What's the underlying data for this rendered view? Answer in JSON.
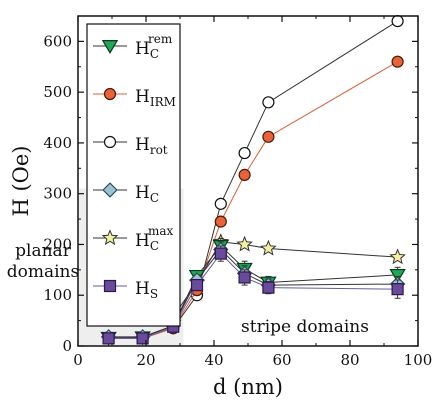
{
  "chart_data": {
    "type": "line",
    "xlabel": "d (nm)",
    "ylabel": "H (Oe)",
    "xlim": [
      0,
      100
    ],
    "ylim": [
      0,
      650
    ],
    "xticks": [
      0,
      20,
      40,
      60,
      80,
      100
    ],
    "yticks": [
      0,
      100,
      200,
      300,
      400,
      500,
      600
    ],
    "grid": false,
    "legend_position": "top-left",
    "shaded_region": {
      "x_range": [
        0,
        31
      ],
      "y_range": [
        0,
        310
      ],
      "color": "#eeeeee"
    },
    "annotations": [
      {
        "id": "planar",
        "lines": [
          "planar",
          "domains"
        ]
      },
      {
        "id": "stripe",
        "lines": [
          "stripe domains"
        ]
      }
    ],
    "series": [
      {
        "key": "hrot",
        "base": "H",
        "sub": "rot",
        "sup": "",
        "marker": "circle",
        "fill": "#ffffff",
        "stroke": "#111111",
        "line_color": "#333333",
        "x": [
          9,
          19,
          28,
          35,
          42,
          49,
          56,
          94
        ],
        "y": [
          15,
          15,
          35,
          100,
          280,
          380,
          480,
          640
        ]
      },
      {
        "key": "hirm",
        "base": "H",
        "sub": "IRM",
        "sup": "",
        "marker": "circle",
        "fill": "#e8623a",
        "stroke": "#4a1a0a",
        "line_color": "#d9603a",
        "x": [
          9,
          19,
          28,
          35,
          42,
          49,
          56,
          94
        ],
        "y": [
          15,
          15,
          35,
          110,
          245,
          337,
          412,
          560
        ]
      },
      {
        "key": "hcmax",
        "base": "H",
        "sub": "C",
        "sup": "max",
        "marker": "star",
        "fill": "#f4f0a0",
        "stroke": "#333333",
        "line_color": "#333333",
        "x": [
          9,
          19,
          28,
          35,
          42,
          49,
          56,
          94
        ],
        "y": [
          63,
          63,
          58,
          125,
          205,
          200,
          192,
          175
        ],
        "err": [
          0,
          0,
          0,
          0,
          0,
          0,
          0,
          0
        ]
      },
      {
        "key": "hcrem",
        "base": "H",
        "sub": "C",
        "sup": "rem",
        "marker": "triangle-down",
        "fill": "#1ea85a",
        "stroke": "#0a3a1a",
        "line_color": "#333333",
        "x": [
          9,
          19,
          28,
          35,
          42,
          49,
          56,
          94
        ],
        "y": [
          16,
          17,
          40,
          138,
          197,
          152,
          125,
          140
        ],
        "err": [
          3,
          3,
          5,
          10,
          15,
          15,
          12,
          15
        ]
      },
      {
        "key": "hc",
        "base": "H",
        "sub": "C",
        "sup": "",
        "marker": "diamond",
        "fill": "#9ec3d0",
        "stroke": "#2a4a5a",
        "line_color": "#333333",
        "x": [
          9,
          19,
          28,
          35,
          42,
          49,
          56,
          94
        ],
        "y": [
          18,
          18,
          40,
          130,
          190,
          143,
          120,
          122
        ],
        "err": [
          3,
          3,
          5,
          10,
          15,
          15,
          12,
          15
        ]
      },
      {
        "key": "hs",
        "base": "H",
        "sub": "S",
        "sup": "",
        "marker": "square",
        "fill": "#6a4a9a",
        "stroke": "#2a1a4a",
        "line_color": "#6a5aa0",
        "x": [
          9,
          19,
          28,
          35,
          42,
          49,
          56,
          94
        ],
        "y": [
          15,
          15,
          38,
          120,
          182,
          135,
          115,
          112
        ],
        "err": [
          3,
          3,
          5,
          10,
          15,
          15,
          12,
          18
        ]
      }
    ],
    "legend_order": [
      "hcrem",
      "hirm",
      "hrot",
      "hc",
      "hcmax",
      "hs"
    ]
  }
}
